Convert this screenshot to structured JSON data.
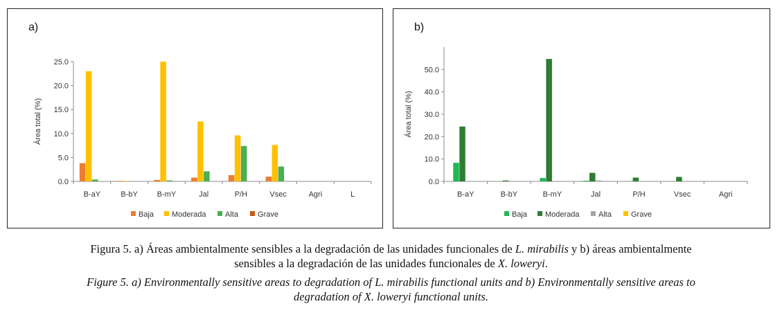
{
  "chart_data": [
    {
      "type": "bar",
      "panel_label": "a)",
      "ylabel": "Área total (%)",
      "ylim": [
        0,
        25
      ],
      "yticks": [
        "0.0",
        "5.0",
        "10.0",
        "15.0",
        "20.0",
        "25.0"
      ],
      "tick_values": [
        0,
        5,
        10,
        15,
        20,
        25
      ],
      "grid": false,
      "legend_position": "bottom",
      "categories": [
        "B-aY",
        "B-bY",
        "B-mY",
        "Jal",
        "P/H",
        "Vsec",
        "Agri",
        "L"
      ],
      "series": [
        {
          "name": "Baja",
          "color": "#ED7D31",
          "values": [
            3.8,
            0.1,
            0.3,
            0.8,
            1.3,
            1.0,
            0,
            0
          ]
        },
        {
          "name": "Moderada",
          "color": "#FFC000",
          "values": [
            23.0,
            0.1,
            25.0,
            12.5,
            9.6,
            7.6,
            0,
            0
          ]
        },
        {
          "name": "Alta",
          "color": "#4CAF50",
          "values": [
            0.4,
            0,
            0.2,
            2.1,
            7.4,
            3.1,
            0,
            0
          ]
        },
        {
          "name": "Grave",
          "color": "#C55A11",
          "values": [
            0,
            0,
            0,
            0,
            0,
            0,
            0,
            0
          ]
        }
      ]
    },
    {
      "type": "bar",
      "panel_label": "b)",
      "ylabel": "Área total (%)",
      "ylim": [
        0,
        60
      ],
      "yticks": [
        "0.0",
        "10.0",
        "20.0",
        "30.0",
        "40.0",
        "50.0"
      ],
      "tick_values": [
        0,
        10,
        20,
        30,
        40,
        50
      ],
      "grid": false,
      "legend_position": "bottom",
      "categories": [
        "B-aY",
        "B-bY",
        "B-mY",
        "Jal",
        "P/H",
        "Vsec",
        "Agri"
      ],
      "series": [
        {
          "name": "Baja",
          "color": "#1DB954",
          "values": [
            8.3,
            0,
            1.5,
            0.3,
            0.1,
            0,
            0
          ]
        },
        {
          "name": "Moderada",
          "color": "#2E7D32",
          "values": [
            24.5,
            0.4,
            54.7,
            3.8,
            1.7,
            2.0,
            0
          ]
        },
        {
          "name": "Alta",
          "color": "#A5A5A5",
          "values": [
            0,
            0,
            0,
            0.4,
            0,
            0,
            0
          ]
        },
        {
          "name": "Grave",
          "color": "#FFC000",
          "values": [
            0,
            0,
            0,
            0,
            0,
            0,
            0
          ]
        }
      ]
    }
  ],
  "caption": {
    "es_line1_pre": "Figura 5. a) Áreas ambientalmente sensibles a la degradación de las unidades funcionales de ",
    "es_line1_species": "L. mirabilis",
    "es_line1_post": " y b) áreas ambientalmente",
    "es_line2_pre": "sensibles a la degradación de las unidades funcionales de ",
    "es_line2_species": "X. loweryi",
    "es_line2_post": ".",
    "en_line1": "Figure 5. a) Environmentally sensitive areas to degradation of L. mirabilis functional units and b) Environmentally sensitive areas to",
    "en_line2": "degradation of X. loweryi functional units."
  }
}
